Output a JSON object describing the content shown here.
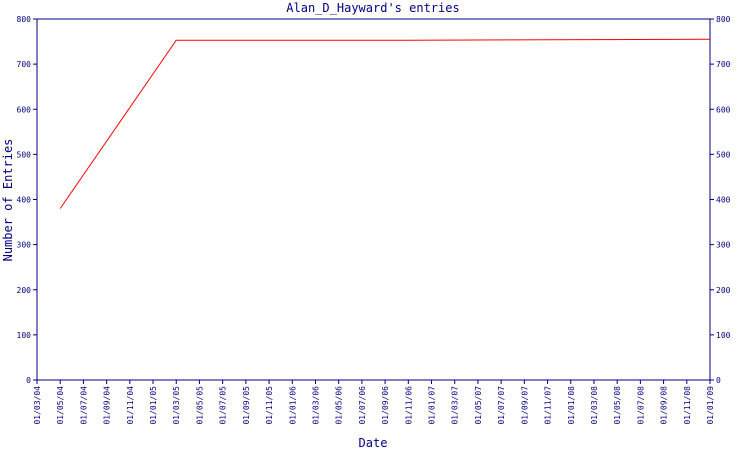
{
  "chart_data": {
    "type": "line",
    "title": "Alan_D_Hayward's entries",
    "xlabel": "Date",
    "ylabel": "Number of Entries",
    "categories": [
      "01/03/04",
      "01/05/04",
      "01/07/04",
      "01/09/04",
      "01/11/04",
      "01/01/05",
      "01/03/05",
      "01/05/05",
      "01/07/05",
      "01/09/05",
      "01/11/05",
      "01/01/06",
      "01/03/06",
      "01/05/06",
      "01/07/06",
      "01/09/06",
      "01/11/06",
      "01/01/07",
      "01/03/07",
      "01/05/07",
      "01/07/07",
      "01/09/07",
      "01/11/07",
      "01/01/08",
      "01/03/08",
      "01/05/08",
      "01/07/08",
      "01/09/08",
      "01/11/08",
      "01/01/09"
    ],
    "series": [
      {
        "color": "#ff0000",
        "x": [
          "01/05/04",
          "01/03/05",
          "01/11/06",
          "01/01/09"
        ],
        "values": [
          380,
          753,
          753,
          755
        ]
      }
    ],
    "ylim": [
      0,
      800
    ],
    "yticks": [
      0,
      100,
      200,
      300,
      400,
      500,
      600,
      700,
      800
    ],
    "axis_color": "#000080"
  }
}
